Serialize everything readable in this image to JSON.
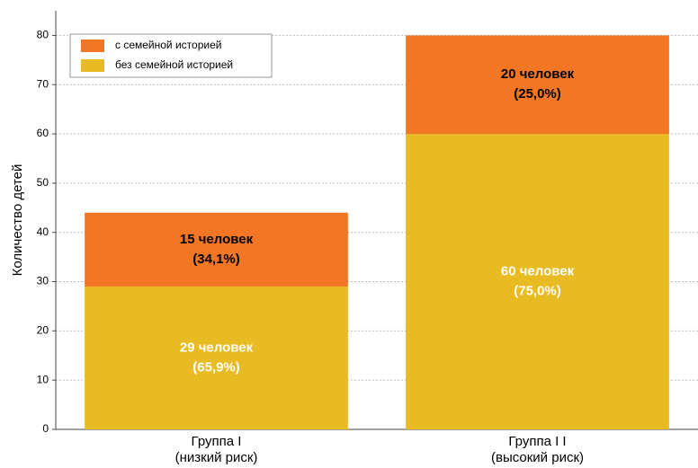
{
  "chart_data": {
    "type": "stacked_bar",
    "y_label": "Количество детей",
    "categories": [
      [
        "Группа I",
        "(низкий риск)"
      ],
      [
        "Группа I I",
        "(высокий риск)"
      ]
    ],
    "series": [
      {
        "name": "с семейной историей",
        "color": "#f27623",
        "label_color": "#000000",
        "values": [
          15,
          20
        ],
        "value_labels": [
          [
            "15 человек",
            "(34,1%)"
          ],
          [
            "20 человек",
            "(25,0%)"
          ]
        ]
      },
      {
        "name": "без семейной историей",
        "color": "#e8bb22",
        "label_color": "#ffffff",
        "values": [
          29,
          60
        ],
        "value_labels": [
          [
            "29 человек",
            "(65,9%)"
          ],
          [
            "60 человек",
            "(75,0%)"
          ]
        ]
      }
    ],
    "ylim": [
      0,
      85
    ],
    "yticks": [
      0,
      10,
      20,
      30,
      40,
      50,
      60,
      70,
      80
    ],
    "grid": true,
    "legend": "upper left"
  }
}
